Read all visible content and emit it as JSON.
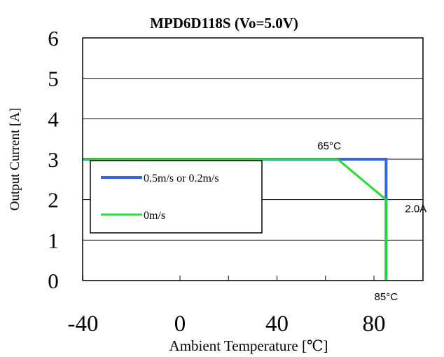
{
  "chart_data": {
    "type": "line",
    "title": "MPD6D118S  (Vo=5.0V)",
    "xlabel": "Ambient Temperature [℃]",
    "ylabel": "Output Current [A]",
    "xlim": [
      -40,
      85
    ],
    "ylim": [
      0,
      6
    ],
    "x_ticks": [
      -40,
      0,
      40,
      80
    ],
    "x_tick_labels": [
      "-40",
      "0",
      "40",
      "80"
    ],
    "y_ticks": [
      0,
      1,
      2,
      3,
      4,
      5,
      6
    ],
    "y_tick_labels": [
      "0",
      "1",
      "2",
      "3",
      "4",
      "5",
      "6"
    ],
    "grid": "horizontal",
    "legend_position": "middle-left",
    "series": [
      {
        "name": "0.5m/s or 0.2m/s",
        "color": "#3366e6",
        "x": [
          -40,
          65,
          85,
          85
        ],
        "y": [
          3,
          3,
          3,
          0
        ]
      },
      {
        "name": "0m/s",
        "color": "#22dd33",
        "x": [
          -40,
          65,
          85,
          85
        ],
        "y": [
          3,
          3,
          2,
          0
        ]
      }
    ],
    "annotations": [
      {
        "text": "65°C",
        "x": 65,
        "y": 3
      },
      {
        "text": "2.0A",
        "x": 85,
        "y": 2
      },
      {
        "text": "85°C",
        "x": 85,
        "y": 0
      }
    ]
  }
}
